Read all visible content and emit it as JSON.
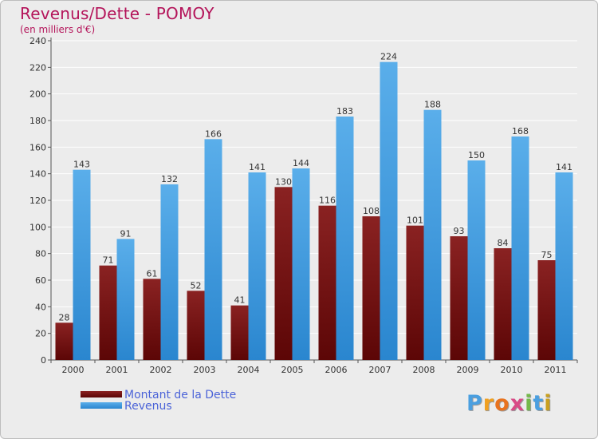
{
  "chart_data": {
    "type": "bar",
    "title": "Revenus/Dette - POMOY",
    "subtitle": "(en milliers d'€)",
    "categories": [
      "2000",
      "2001",
      "2002",
      "2003",
      "2004",
      "2005",
      "2006",
      "2007",
      "2008",
      "2009",
      "2010",
      "2011"
    ],
    "series": [
      {
        "name": "Montant de la Dette",
        "color": "#7a1515",
        "values": [
          28,
          71,
          61,
          52,
          41,
          130,
          116,
          108,
          101,
          93,
          84,
          75
        ]
      },
      {
        "name": "Revenus",
        "color": "#3f9ee3",
        "values": [
          143,
          91,
          132,
          166,
          141,
          144,
          183,
          224,
          188,
          150,
          168,
          141
        ]
      }
    ],
    "ylim": [
      0,
      240
    ],
    "yticks": [
      0,
      20,
      40,
      60,
      80,
      100,
      120,
      140,
      160,
      180,
      200,
      220,
      240
    ],
    "grid": true,
    "legend": "bottom-left"
  },
  "brand": {
    "logo_letters": [
      "P",
      "r",
      "o",
      "x",
      "i",
      "t",
      "i"
    ],
    "logo_colors": [
      "#4a9fe0",
      "#f0a021",
      "#e8731f",
      "#d94a86",
      "#74b94a",
      "#4a9fe0",
      "#c9a020"
    ]
  }
}
